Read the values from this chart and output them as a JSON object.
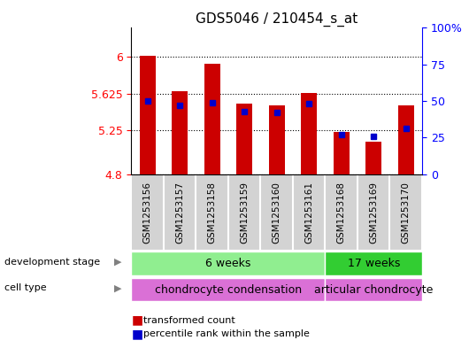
{
  "title": "GDS5046 / 210454_s_at",
  "samples": [
    "GSM1253156",
    "GSM1253157",
    "GSM1253158",
    "GSM1253159",
    "GSM1253160",
    "GSM1253161",
    "GSM1253168",
    "GSM1253169",
    "GSM1253170"
  ],
  "bar_values": [
    6.01,
    5.65,
    5.93,
    5.52,
    5.5,
    5.63,
    5.23,
    5.13,
    5.5
  ],
  "percentile_values": [
    50,
    47,
    49,
    43,
    42,
    48,
    27,
    26,
    31
  ],
  "y_min": 4.8,
  "y_max": 6.3,
  "y_ticks": [
    4.8,
    5.25,
    5.625,
    6
  ],
  "y_tick_labels": [
    "4.8",
    "5.25",
    "5.625",
    "6"
  ],
  "right_y_ticks": [
    0,
    25,
    50,
    75,
    100
  ],
  "right_y_tick_labels": [
    "0",
    "25",
    "50",
    "75",
    "100%"
  ],
  "bar_color": "#cc0000",
  "percentile_color": "#0000cc",
  "background_color": "#ffffff",
  "plot_bg_color": "#ffffff",
  "grid_color": "#000000",
  "group1_label": "6 weeks",
  "group2_label": "17 weeks",
  "group1_indices": [
    0,
    1,
    2,
    3,
    4,
    5
  ],
  "group2_indices": [
    6,
    7,
    8
  ],
  "cell_type1_label": "chondrocyte condensation",
  "cell_type2_label": "articular chondrocyte",
  "dev_stage_label": "development stage",
  "cell_type_label": "cell type",
  "legend_bar_label": "transformed count",
  "legend_pct_label": "percentile rank within the sample",
  "group1_color": "#90ee90",
  "group2_color": "#32cd32",
  "cell_type1_color": "#da70d6",
  "cell_type2_color": "#da70d6",
  "bar_width": 0.5,
  "tick_label_fontsize": 9,
  "title_fontsize": 11
}
